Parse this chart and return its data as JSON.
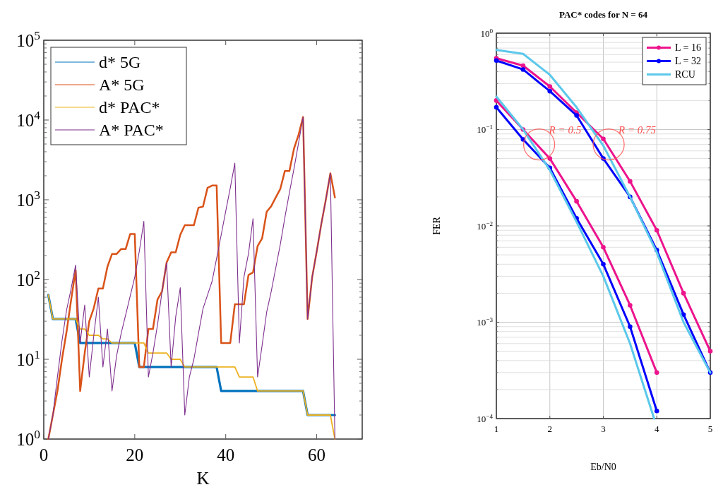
{
  "chart_data": [
    {
      "type": "line",
      "xlabel": "K",
      "x": [
        1,
        2,
        3,
        4,
        5,
        6,
        7,
        8,
        9,
        10,
        11,
        12,
        13,
        14,
        15,
        16,
        17,
        18,
        19,
        20,
        21,
        22,
        23,
        24,
        25,
        26,
        27,
        28,
        29,
        30,
        31,
        32,
        33,
        34,
        35,
        36,
        37,
        38,
        39,
        40,
        41,
        42,
        43,
        44,
        45,
        46,
        47,
        48,
        49,
        50,
        51,
        52,
        53,
        54,
        55,
        56,
        57,
        58,
        59,
        60,
        61,
        62,
        63,
        64
      ],
      "xlim": [
        0,
        70
      ],
      "xticks": [
        0,
        20,
        40,
        60
      ],
      "ylim": [
        1,
        100000
      ],
      "log": true,
      "yticks": [
        {
          "value": 1,
          "label": "10$^{0}$"
        },
        {
          "value": 10,
          "label": "10$^{1}$"
        },
        {
          "value": 100,
          "label": "10$^{2}$"
        },
        {
          "value": 1000,
          "label": "10$^{3}$"
        },
        {
          "value": 10000,
          "label": "10$^{4}$"
        },
        {
          "value": 100000,
          "label": "10$^{5}$"
        }
      ],
      "grid": false,
      "legend": "top left",
      "line_style": "solid",
      "marker": "none",
      "series": [
        {
          "name": "d* 5G",
          "color": "#0072bd",
          "values": [
            64,
            32,
            32,
            32,
            32,
            32,
            32,
            16,
            16,
            16,
            16,
            16,
            16,
            16,
            16,
            16,
            16,
            16,
            16,
            16,
            8,
            8,
            8,
            8,
            8,
            8,
            8,
            8,
            8,
            8,
            8,
            8,
            8,
            8,
            8,
            8,
            8,
            8,
            4,
            4,
            4,
            4,
            4,
            4,
            4,
            4,
            4,
            4,
            4,
            4,
            4,
            4,
            4,
            4,
            4,
            4,
            4,
            2,
            2,
            2,
            2,
            2,
            2,
            2
          ]
        },
        {
          "name": "A* 5G",
          "color": "#d95319",
          "values": [
            1,
            2,
            4,
            10,
            22,
            55,
            131,
            4,
            12,
            30,
            44,
            77,
            77,
            145,
            209,
            209,
            241,
            241,
            373,
            373,
            8,
            8,
            24,
            24,
            56,
            71,
            163,
            219,
            219,
            363,
            480,
            480,
            480,
            795,
            820,
            1410,
            1510,
            1510,
            16,
            16,
            16,
            49,
            49,
            49,
            114,
            123,
            262,
            328,
            707,
            830,
            1070,
            1370,
            2300,
            2300,
            4360,
            6500,
            10900,
            32,
            107,
            225,
            494,
            1000,
            2150,
            1070
          ]
        },
        {
          "name": "d* PAC*",
          "color": "#edb120",
          "values": [
            64,
            32,
            32,
            32,
            32,
            32,
            32,
            24,
            24,
            20,
            20,
            20,
            18,
            18,
            16,
            16,
            16,
            16,
            16,
            16,
            16,
            16,
            12,
            12,
            12,
            12,
            12,
            10,
            10,
            10,
            8,
            8,
            8,
            8,
            8,
            8,
            8,
            8,
            8,
            8,
            8,
            8,
            6,
            6,
            6,
            6,
            4,
            4,
            4,
            4,
            4,
            4,
            4,
            4,
            4,
            4,
            4,
            2,
            2,
            2,
            2,
            2,
            2,
            1
          ]
        },
        {
          "name": "A* PAC*",
          "color": "#7e2f8e",
          "values": [
            1,
            2,
            6,
            17,
            41,
            76,
            152,
            16,
            48,
            6,
            20,
            60,
            8,
            24,
            4,
            11,
            21,
            36,
            62,
            107,
            226,
            537,
            6,
            12,
            27,
            71,
            163,
            8,
            34,
            79,
            2,
            6,
            10,
            21,
            43,
            64,
            95,
            185,
            363,
            720,
            1410,
            2880,
            16,
            107,
            211,
            578,
            6,
            15,
            39,
            71,
            140,
            276,
            600,
            1230,
            2440,
            5120,
            10900,
            32,
            107,
            225,
            494,
            1000,
            2150,
            1
          ]
        }
      ]
    },
    {
      "type": "line",
      "title": "PAC* codes for N = 64",
      "xlabel": "Eb/N0",
      "ylabel": "FER",
      "x": [
        1,
        1.5,
        2,
        2.5,
        3,
        3.5,
        4,
        4.5,
        5
      ],
      "xlim": [
        1,
        5
      ],
      "xticks": [
        1,
        2,
        3,
        4,
        5
      ],
      "ylim": [
        0.0001,
        1
      ],
      "log": true,
      "yticks": [
        {
          "value": 0.0001,
          "label": "10$^{−4}$"
        },
        {
          "value": 0.001,
          "label": "10$^{−3}$"
        },
        {
          "value": 0.01,
          "label": "10$^{−2}$"
        },
        {
          "value": 0.1,
          "label": "10$^{−1}$"
        },
        {
          "value": 1,
          "label": "10$^{0}$"
        }
      ],
      "grid": true,
      "legend": "top right",
      "line_style": "solid",
      "annotations": [
        {
          "text": "R = 0.5",
          "x": 1.8,
          "y": 0.07
        },
        {
          "text": "R = 0.75",
          "x": 3.1,
          "y": 0.07
        }
      ],
      "series": [
        {
          "name": "L = 16",
          "color": "#ec148c",
          "marker": "circle",
          "values": [
            0.55,
            0.46,
            0.28,
            0.15,
            0.08,
            0.029,
            0.009,
            0.002,
            0.0005
          ]
        },
        {
          "name": "L = 32",
          "color": "#0000ff",
          "marker": "circle",
          "values": [
            0.52,
            0.42,
            0.25,
            0.14,
            0.05,
            0.02,
            0.0056,
            0.0012,
            0.0003
          ]
        },
        {
          "name": "RCU",
          "color": "#5bc8eb",
          "marker": "none",
          "values": [
            0.67,
            0.61,
            0.37,
            0.17,
            0.068,
            0.02,
            0.0053,
            0.001,
            0.0003
          ]
        },
        {
          "color": "#ec148c",
          "marker": "circle",
          "x": [
            1,
            1.5,
            2,
            2.5,
            3,
            3.5,
            4
          ],
          "values": [
            0.2,
            0.1,
            0.05,
            0.018,
            0.006,
            0.0015,
            0.0003
          ]
        },
        {
          "color": "#0000ff",
          "marker": "circle",
          "x": [
            1,
            1.5,
            2,
            2.5,
            3,
            3.5,
            4
          ],
          "values": [
            0.17,
            0.079,
            0.04,
            0.012,
            0.004,
            0.0009,
            0.00012
          ]
        },
        {
          "color": "#5bc8eb",
          "marker": "none",
          "x": [
            1,
            1.5,
            2,
            2.5,
            3,
            3.5,
            3.95
          ],
          "values": [
            0.22,
            0.1,
            0.038,
            0.011,
            0.003,
            0.0006,
            0.0001
          ]
        }
      ]
    }
  ]
}
